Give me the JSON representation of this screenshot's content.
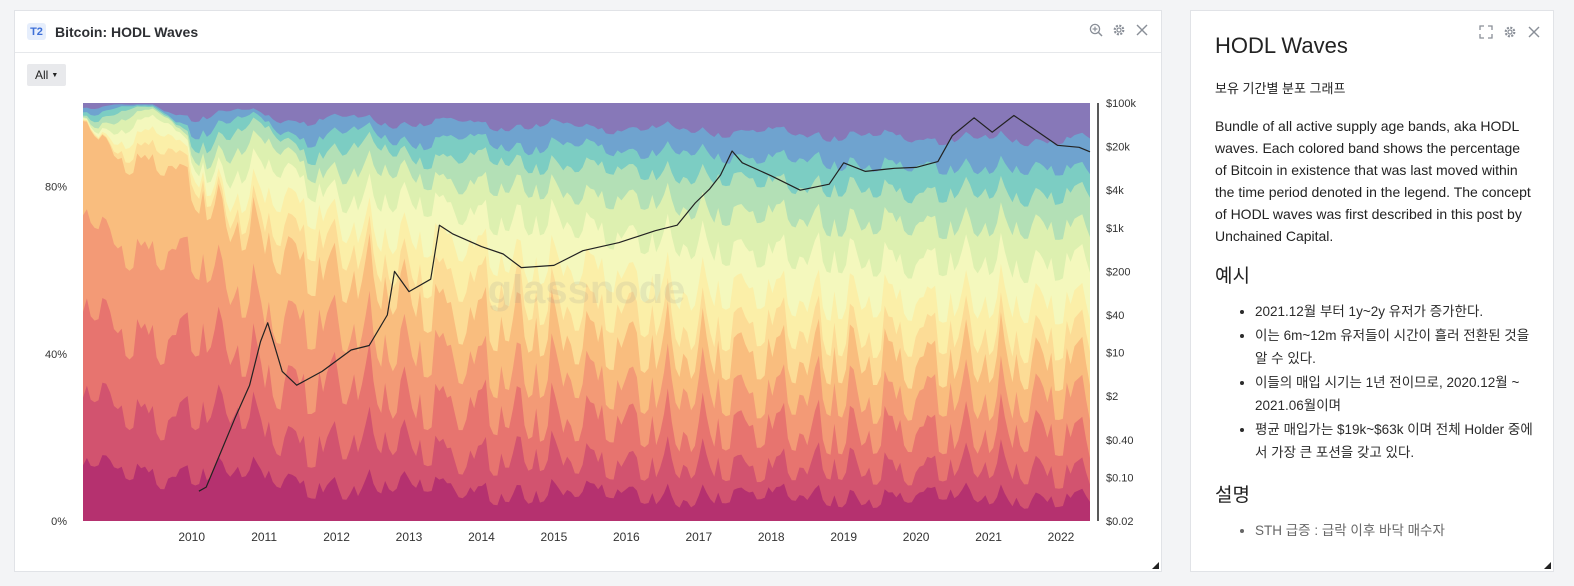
{
  "chart_panel": {
    "badge": "T2",
    "title": "Bitcoin: HODL Waves",
    "range_button": "All"
  },
  "desc_panel": {
    "title": "HODL Waves",
    "subtitle": "보유 기간별 분포 그래프",
    "body": "Bundle of all active supply age bands, aka HODL waves. Each colored band shows the percentage of Bitcoin in existence that was last moved within the time period denoted in the legend. The concept of HODL waves was first described in this post by Unchained Capital.",
    "example_heading": "예시",
    "examples": [
      "2021.12월 부터 1y~2y 유저가 증가한다.",
      "이는 6m~12m 유저들이 시간이 흘러 전환된 것을 알 수 있다.",
      "이들의 매입 시기는 1년 전이므로, 2020.12월 ~ 2021.06월이며",
      "평균 매입가는 $19k~$63k 이며 전체 Holder 중에서 가장 큰 포션을 갖고 있다."
    ],
    "explain_heading": "설명",
    "explain_items": [
      "STH 급증 : 급락 이후 바닥 매수자"
    ]
  },
  "chart_data": {
    "type": "area",
    "title": "Bitcoin: HODL Waves",
    "watermark": "glassnode",
    "x_ticks": [
      "2010",
      "2011",
      "2012",
      "2013",
      "2014",
      "2015",
      "2016",
      "2017",
      "2018",
      "2019",
      "2020",
      "2021",
      "2022"
    ],
    "x_range": [
      2009.0,
      2022.9
    ],
    "y_left_ticks": [
      "0%",
      "40%",
      "80%"
    ],
    "y_left_range": [
      0,
      100
    ],
    "y_right_ticks": [
      "$0.02",
      "$0.10",
      "$0.40",
      "$2",
      "$10",
      "$40",
      "$200",
      "$1k",
      "$4k",
      "$20k",
      "$100k"
    ],
    "y_right_scale": "log",
    "y_right_range": [
      0.02,
      100000
    ],
    "grid": false,
    "band_colors": [
      "#b5316f",
      "#d2536f",
      "#e7746f",
      "#f39a76",
      "#f9bd7e",
      "#fcdc96",
      "#fbefa8",
      "#f4f8bd",
      "#ddf0b0",
      "#b3e0b6",
      "#7ccdc3",
      "#6fa3cf",
      "#8778b8"
    ],
    "price_series": {
      "name": "Price",
      "x": [
        2010.6,
        2010.7,
        2010.9,
        2011.1,
        2011.3,
        2011.45,
        2011.55,
        2011.75,
        2011.95,
        2012.3,
        2012.7,
        2012.95,
        2013.2,
        2013.3,
        2013.5,
        2013.8,
        2013.92,
        2014.1,
        2014.5,
        2014.8,
        2015.05,
        2015.5,
        2015.9,
        2016.4,
        2016.9,
        2017.2,
        2017.45,
        2017.65,
        2017.8,
        2017.96,
        2018.1,
        2018.5,
        2018.9,
        2019.3,
        2019.5,
        2019.8,
        2020.2,
        2020.5,
        2020.8,
        2021.0,
        2021.3,
        2021.55,
        2021.85,
        2022.1,
        2022.45,
        2022.75,
        2022.9
      ],
      "y": [
        0.06,
        0.07,
        0.25,
        0.9,
        3,
        15,
        30,
        5,
        3,
        5,
        11,
        13,
        40,
        200,
        95,
        150,
        1100,
        800,
        500,
        380,
        230,
        250,
        430,
        580,
        900,
        1100,
        2500,
        4200,
        7000,
        17000,
        11000,
        6800,
        4000,
        5000,
        11000,
        8000,
        9000,
        9300,
        11500,
        30000,
        58000,
        34000,
        63000,
        40000,
        21000,
        19500,
        16500
      ]
    }
  }
}
